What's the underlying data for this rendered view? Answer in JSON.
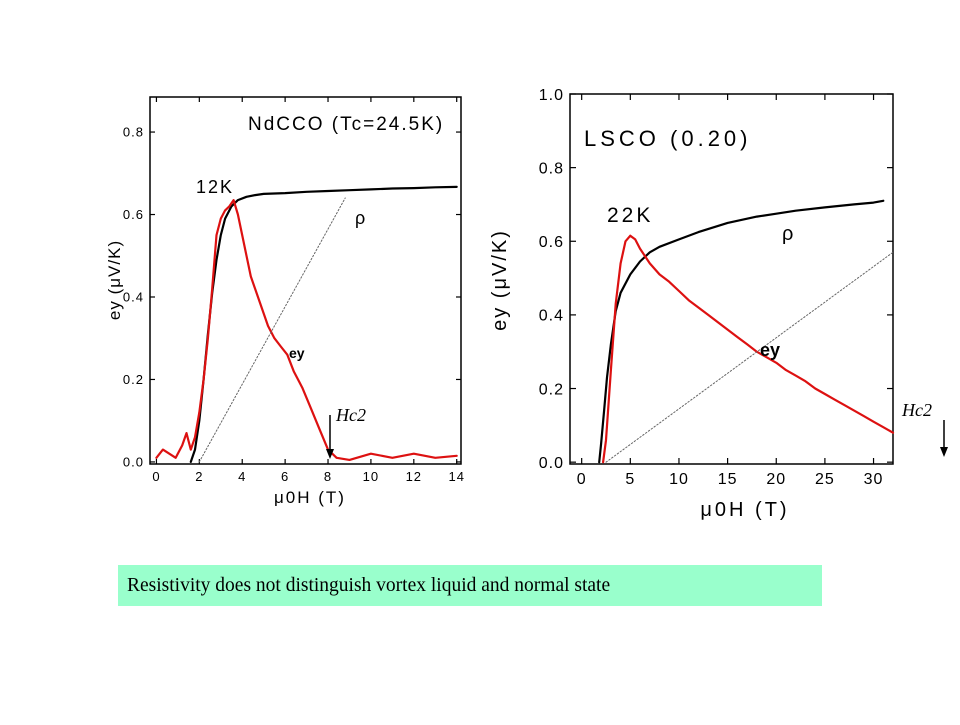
{
  "caption": "Resistivity does not distinguish vortex liquid and normal state",
  "colors": {
    "ey": "#dd1111",
    "rho": "#000000",
    "background": "#ffffff",
    "caption_bg": "#99ffcc"
  },
  "chart_data": [
    {
      "type": "line",
      "title": "NdCCO (Tc=24.5K)",
      "temperature_label": "12K",
      "xlabel": "μ0H (T)",
      "ylabel": "ey (μV/K)",
      "xlim": [
        -0.3,
        14.2
      ],
      "ylim": [
        -0.005,
        0.885
      ],
      "xticks": [
        0,
        2,
        4,
        6,
        8,
        10,
        12,
        14
      ],
      "xtick_labels": [
        "0",
        "2",
        "4",
        "6",
        "8",
        "10",
        "12",
        "14"
      ],
      "yticks": [
        0.0,
        0.2,
        0.4,
        0.6,
        0.8
      ],
      "ytick_labels": [
        "0.0",
        "0.2",
        "0.4",
        "0.6",
        "0.8"
      ],
      "annotations": {
        "rho": "ρ",
        "ey": "ey",
        "hc2": "Hc2",
        "hc2_x": 8.2
      },
      "series": [
        {
          "name": "ρ",
          "color": "#000000",
          "x": [
            1.6,
            1.8,
            2.0,
            2.2,
            2.4,
            2.6,
            2.8,
            3.0,
            3.2,
            3.5,
            3.8,
            4.2,
            4.6,
            5.0,
            6.0,
            7.0,
            8.0,
            9.0,
            10.0,
            11.0,
            12.0,
            13.0,
            14.0
          ],
          "y": [
            0.0,
            0.03,
            0.1,
            0.2,
            0.31,
            0.41,
            0.49,
            0.55,
            0.59,
            0.62,
            0.635,
            0.643,
            0.647,
            0.65,
            0.652,
            0.655,
            0.657,
            0.659,
            0.661,
            0.663,
            0.664,
            0.666,
            0.667
          ]
        },
        {
          "name": "ey",
          "color": "#dd1111",
          "x": [
            0.0,
            0.3,
            0.6,
            0.9,
            1.2,
            1.4,
            1.6,
            1.8,
            2.0,
            2.2,
            2.4,
            2.6,
            2.8,
            3.0,
            3.2,
            3.4,
            3.6,
            3.8,
            4.0,
            4.2,
            4.4,
            4.6,
            4.8,
            5.0,
            5.2,
            5.5,
            5.8,
            6.1,
            6.4,
            6.8,
            7.2,
            7.6,
            8.0,
            8.4,
            9.0,
            10.0,
            11.0,
            12.0,
            13.0,
            14.0
          ],
          "y": [
            0.01,
            0.03,
            0.02,
            0.01,
            0.04,
            0.07,
            0.03,
            0.06,
            0.12,
            0.2,
            0.3,
            0.42,
            0.55,
            0.59,
            0.61,
            0.62,
            0.635,
            0.6,
            0.55,
            0.5,
            0.45,
            0.42,
            0.39,
            0.36,
            0.33,
            0.3,
            0.28,
            0.26,
            0.22,
            0.18,
            0.13,
            0.08,
            0.03,
            0.01,
            0.005,
            0.02,
            0.01,
            0.02,
            0.01,
            0.015
          ]
        },
        {
          "name": "linear",
          "color": "#666666",
          "dotted": true,
          "x": [
            2.0,
            8.8
          ],
          "y": [
            0.0,
            0.64
          ]
        }
      ]
    },
    {
      "type": "line",
      "title": "LSCO (0.20)",
      "temperature_label": "22K",
      "xlabel": "μ0H (T)",
      "ylabel": "ey (μV/K)",
      "xlim": [
        -1.2,
        32.0
      ],
      "ylim": [
        -0.005,
        1.0
      ],
      "xticks": [
        0,
        5,
        10,
        15,
        20,
        25,
        30
      ],
      "xtick_labels": [
        "0",
        "5",
        "10",
        "15",
        "20",
        "25",
        "30"
      ],
      "yticks": [
        0.0,
        0.2,
        0.4,
        0.6,
        0.8,
        1.0
      ],
      "ytick_labels": [
        "0.0",
        "0.2",
        "0.4",
        "0.6",
        "0.8",
        "1.0"
      ],
      "annotations": {
        "rho": "ρ",
        "ey": "ey",
        "hc2": "Hc2"
      },
      "series": [
        {
          "name": "ρ",
          "color": "#000000",
          "x": [
            1.8,
            2.0,
            2.3,
            2.6,
            3.0,
            3.5,
            4.0,
            5.0,
            6.0,
            7.0,
            8.0,
            10.0,
            12.0,
            15.0,
            18.0,
            20.0,
            22.0,
            25.0,
            28.0,
            30.0,
            31.0
          ],
          "y": [
            0.0,
            0.05,
            0.14,
            0.23,
            0.32,
            0.41,
            0.46,
            0.51,
            0.545,
            0.57,
            0.585,
            0.605,
            0.625,
            0.65,
            0.667,
            0.675,
            0.683,
            0.692,
            0.7,
            0.705,
            0.71
          ]
        },
        {
          "name": "ey",
          "color": "#dd1111",
          "x": [
            2.2,
            2.5,
            3.0,
            3.5,
            4.0,
            4.5,
            5.0,
            5.5,
            6.0,
            7.0,
            8.0,
            9.0,
            10.0,
            11.0,
            12.0,
            13.0,
            14.0,
            15.0,
            16.0,
            17.0,
            18.0,
            19.0,
            20.0,
            21.0,
            22.0,
            23.0,
            24.0,
            25.0,
            26.0,
            27.0,
            28.0,
            29.0,
            30.0,
            31.0,
            32.0
          ],
          "y": [
            0.0,
            0.06,
            0.25,
            0.43,
            0.54,
            0.6,
            0.615,
            0.605,
            0.58,
            0.54,
            0.51,
            0.49,
            0.465,
            0.44,
            0.42,
            0.4,
            0.38,
            0.36,
            0.34,
            0.32,
            0.3,
            0.285,
            0.27,
            0.25,
            0.235,
            0.22,
            0.2,
            0.185,
            0.17,
            0.155,
            0.14,
            0.125,
            0.11,
            0.095,
            0.08
          ]
        },
        {
          "name": "linear",
          "color": "#666666",
          "dotted": true,
          "x": [
            2.5,
            32.0
          ],
          "y": [
            0.0,
            0.57
          ]
        }
      ]
    }
  ]
}
